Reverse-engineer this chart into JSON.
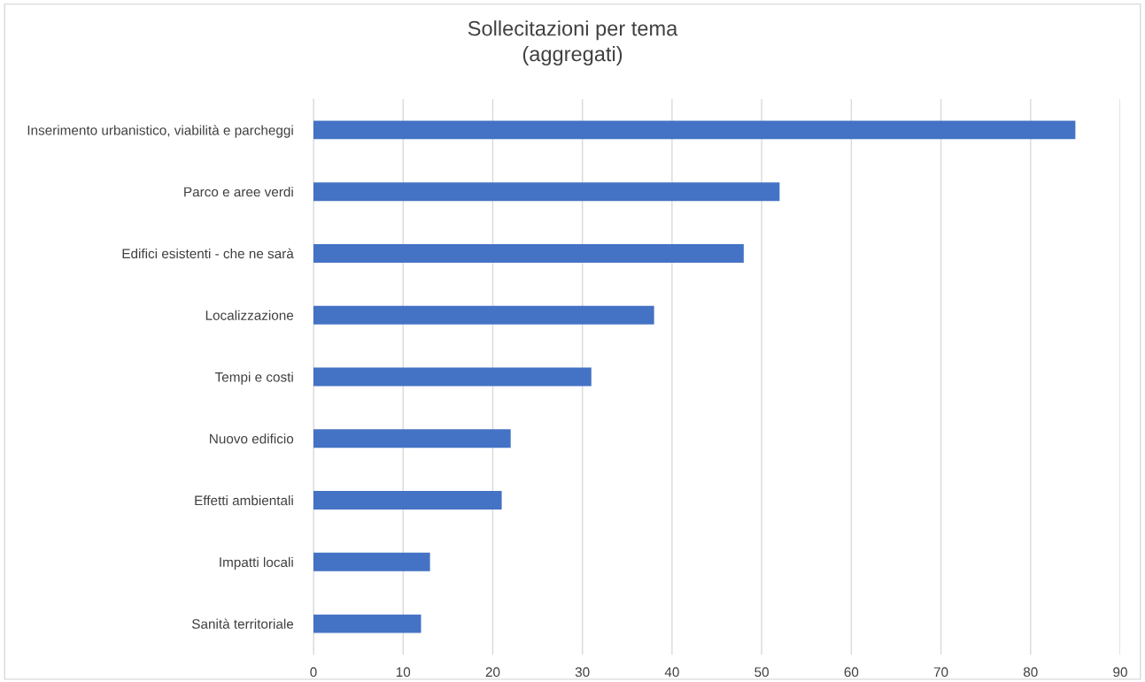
{
  "chart_data": {
    "type": "bar",
    "orientation": "horizontal",
    "title": "Sollecitazioni per tema\n(aggregati)",
    "categories": [
      "Inserimento urbanistico, viabilità e parcheggi",
      "Parco e aree verdi",
      "Edifici esistenti - che ne sarà",
      "Localizzazione",
      "Tempi e costi",
      "Nuovo edificio",
      "Effetti ambientali",
      "Impatti locali",
      "Sanità territoriale"
    ],
    "values": [
      85,
      52,
      48,
      38,
      31,
      22,
      21,
      13,
      12
    ],
    "color": "#4472c4",
    "xlim": [
      0,
      90
    ],
    "xticks": [
      0,
      10,
      20,
      30,
      40,
      50,
      60,
      70,
      80,
      90
    ],
    "grid": "x",
    "legend": false
  }
}
